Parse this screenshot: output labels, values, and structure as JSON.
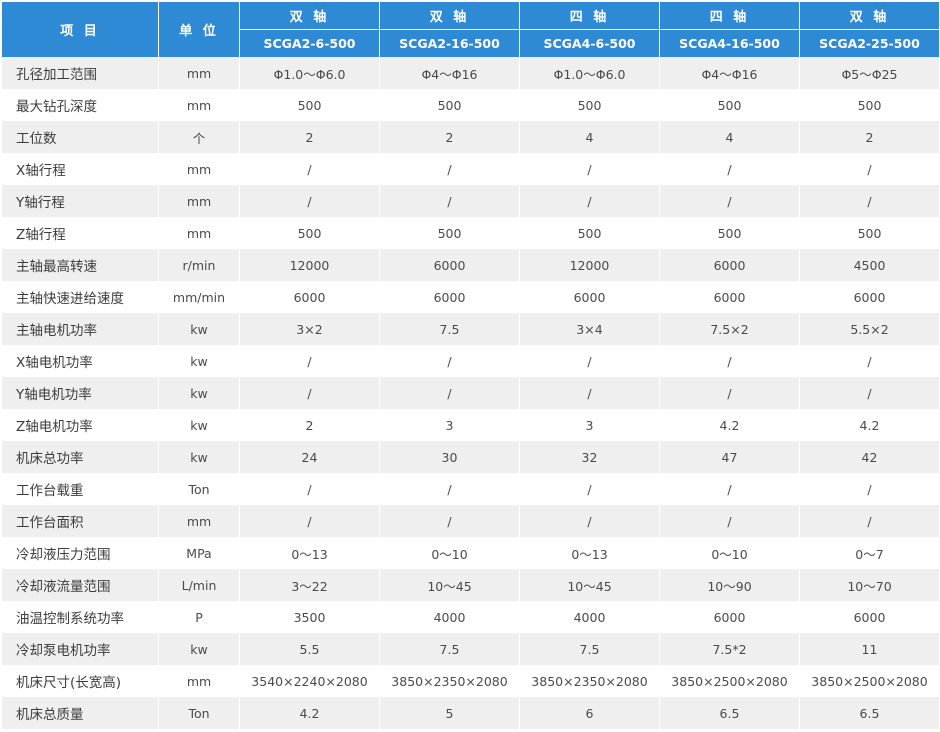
{
  "table": {
    "header": {
      "item_label": "项 目",
      "unit_label": "单 位",
      "models": [
        {
          "type": "双 轴",
          "name": "SCGA2-6-500"
        },
        {
          "type": "双 轴",
          "name": "SCGA2-16-500"
        },
        {
          "type": "四 轴",
          "name": "SCGA4-6-500"
        },
        {
          "type": "四 轴",
          "name": "SCGA4-16-500"
        },
        {
          "type": "双 轴",
          "name": "SCGA2-25-500"
        }
      ]
    },
    "rows": [
      {
        "item": "孔径加工范围",
        "unit": "mm",
        "values": [
          "Φ1.0～Φ6.0",
          "Φ4～Φ16",
          "Φ1.0～Φ6.0",
          "Φ4～Φ16",
          "Φ5～Φ25"
        ]
      },
      {
        "item": "最大钻孔深度",
        "unit": "mm",
        "values": [
          "500",
          "500",
          "500",
          "500",
          "500"
        ]
      },
      {
        "item": "工位数",
        "unit": "个",
        "values": [
          "2",
          "2",
          "4",
          "4",
          "2"
        ]
      },
      {
        "item": "X轴行程",
        "unit": "mm",
        "values": [
          "/",
          "/",
          "/",
          "/",
          "/"
        ]
      },
      {
        "item": "Y轴行程",
        "unit": "mm",
        "values": [
          "/",
          "/",
          "/",
          "/",
          "/"
        ]
      },
      {
        "item": "Z轴行程",
        "unit": "mm",
        "values": [
          "500",
          "500",
          "500",
          "500",
          "500"
        ]
      },
      {
        "item": "主轴最高转速",
        "unit": "r/min",
        "values": [
          "12000",
          "6000",
          "12000",
          "6000",
          "4500"
        ]
      },
      {
        "item": "主轴快速进给速度",
        "unit": "mm/min",
        "values": [
          "6000",
          "6000",
          "6000",
          "6000",
          "6000"
        ]
      },
      {
        "item": "主轴电机功率",
        "unit": "kw",
        "values": [
          "3×2",
          "7.5",
          "3×4",
          "7.5×2",
          "5.5×2"
        ]
      },
      {
        "item": "X轴电机功率",
        "unit": "kw",
        "values": [
          "/",
          "/",
          "/",
          "/",
          "/"
        ]
      },
      {
        "item": "Y轴电机功率",
        "unit": "kw",
        "values": [
          "/",
          "/",
          "/",
          "/",
          "/"
        ]
      },
      {
        "item": "Z轴电机功率",
        "unit": "kw",
        "values": [
          "2",
          "3",
          "3",
          "4.2",
          "4.2"
        ]
      },
      {
        "item": "机床总功率",
        "unit": "kw",
        "values": [
          "24",
          "30",
          "32",
          "47",
          "42"
        ]
      },
      {
        "item": "工作台载重",
        "unit": "Ton",
        "values": [
          "/",
          "/",
          "/",
          "/",
          "/"
        ]
      },
      {
        "item": "工作台面积",
        "unit": "mm",
        "values": [
          "/",
          "/",
          "/",
          "/",
          "/"
        ]
      },
      {
        "item": "冷却液压力范围",
        "unit": "MPa",
        "values": [
          "0～13",
          "0～10",
          "0～13",
          "0～10",
          "0～7"
        ]
      },
      {
        "item": "冷却液流量范围",
        "unit": "L/min",
        "values": [
          "3～22",
          "10～45",
          "10～45",
          "10～90",
          "10～70"
        ]
      },
      {
        "item": "油温控制系统功率",
        "unit": "P",
        "values": [
          "3500",
          "4000",
          "4000",
          "6000",
          "6000"
        ]
      },
      {
        "item": "冷却泵电机功率",
        "unit": "kw",
        "values": [
          "5.5",
          "7.5",
          "7.5",
          "7.5*2",
          "11"
        ]
      },
      {
        "item": "机床尺寸(长宽高)",
        "unit": "mm",
        "values": [
          "3540×2240×2080",
          "3850×2350×2080",
          "3850×2350×2080",
          "3850×2500×2080",
          "3850×2500×2080"
        ]
      },
      {
        "item": "机床总质量",
        "unit": "Ton",
        "values": [
          "4.2",
          "5",
          "6",
          "6.5",
          "6.5"
        ]
      }
    ]
  }
}
